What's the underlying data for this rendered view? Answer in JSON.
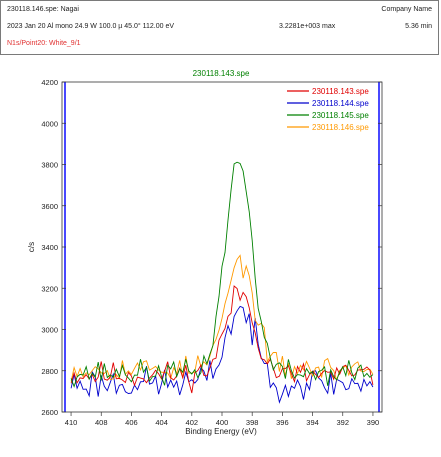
{
  "header": {
    "file_line": "230118.146.spe: Nagai",
    "company": "Company Name",
    "acq_line": "2023 Jan 20  Al mono  24.9 W  100.0 µ  45.0°  112.00 eV",
    "max_line": "3.2281e+003 max",
    "time_line": "5.36 min",
    "region_line": "N1s/Point20: White_9/1"
  },
  "chart_data": {
    "type": "line",
    "title": "230118.143.spe",
    "xlabel": "Binding Energy (eV)",
    "ylabel": "c/s",
    "xlim": [
      410.6,
      389.4
    ],
    "ylim": [
      2600,
      4200
    ],
    "x_ticks": [
      410,
      408,
      406,
      404,
      402,
      400,
      398,
      396,
      394,
      392,
      390
    ],
    "y_ticks": [
      2600,
      2800,
      3000,
      3200,
      3400,
      3600,
      3800,
      4000,
      4200
    ],
    "grid": false,
    "legend_position": "top-right",
    "x_start": 410,
    "x_end": 390,
    "x_step": 0.2,
    "series": [
      {
        "name": "230118.143.spe",
        "color": "#e00000",
        "baseline": 2780,
        "noise": 50,
        "slope": 0,
        "peak_height": 400,
        "peak_center": 398.8,
        "peak_width": 0.95,
        "seed": 11
      },
      {
        "name": "230118.144.spe",
        "color": "#0000cc",
        "baseline": 2740,
        "noise": 60,
        "slope": 0,
        "peak_height": 360,
        "peak_center": 398.8,
        "peak_width": 0.95,
        "seed": 23
      },
      {
        "name": "230118.145.spe",
        "color": "#008000",
        "baseline": 2790,
        "noise": 45,
        "slope": 0,
        "peak_height": 1030,
        "peak_center": 398.9,
        "peak_width": 0.9,
        "seed": 37
      },
      {
        "name": "230118.146.spe",
        "color": "#ff9900",
        "baseline": 2810,
        "noise": 45,
        "slope": 0,
        "peak_height": 520,
        "peak_center": 398.8,
        "peak_width": 0.95,
        "seed": 53
      }
    ]
  }
}
